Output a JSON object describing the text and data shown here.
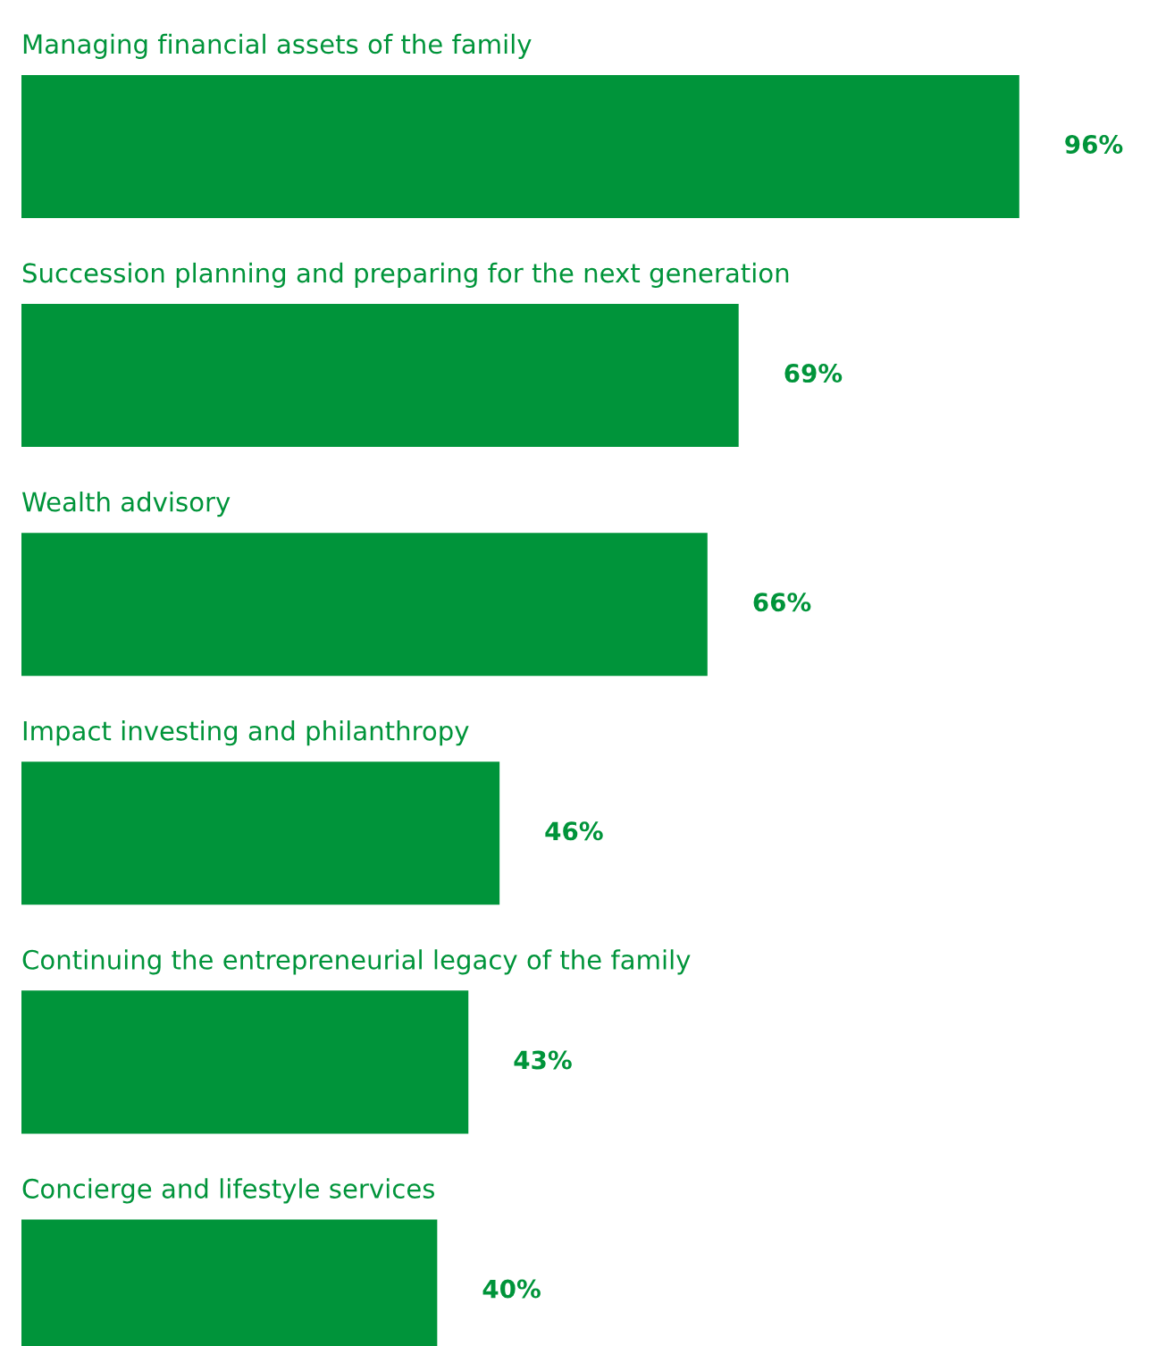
{
  "chart_data": {
    "type": "bar",
    "orientation": "horizontal",
    "categories": [
      "Managing financial assets of the family",
      "Succession planning and preparing for the next generation",
      "Wealth advisory",
      "Impact investing and philanthropy",
      "Continuing the entrepreneurial legacy of the family",
      "Concierge and lifestyle services"
    ],
    "values": [
      96,
      69,
      66,
      46,
      43,
      40
    ],
    "value_labels": [
      "96%",
      "69%",
      "66%",
      "46%",
      "43%",
      "40%"
    ],
    "color": "#00943a"
  }
}
